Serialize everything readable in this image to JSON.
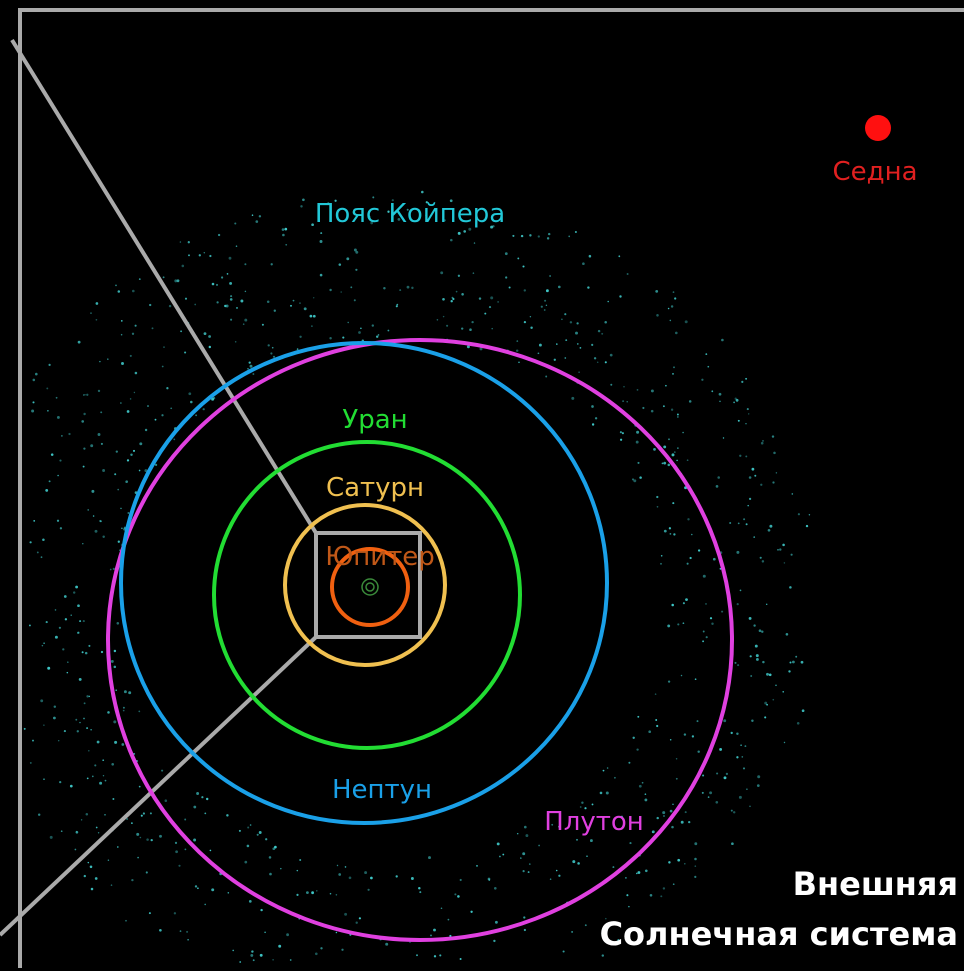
{
  "labels": {
    "sedna": "Седна",
    "kuiper_belt": "Пояс Койпера",
    "uranus": "Уран",
    "saturn": "Сатурн",
    "jupiter": "Юпитер",
    "neptune": "Нептун",
    "pluto": "Плутон"
  },
  "title": {
    "line1": "Внешняя",
    "line2": "Солнечная система"
  }
}
